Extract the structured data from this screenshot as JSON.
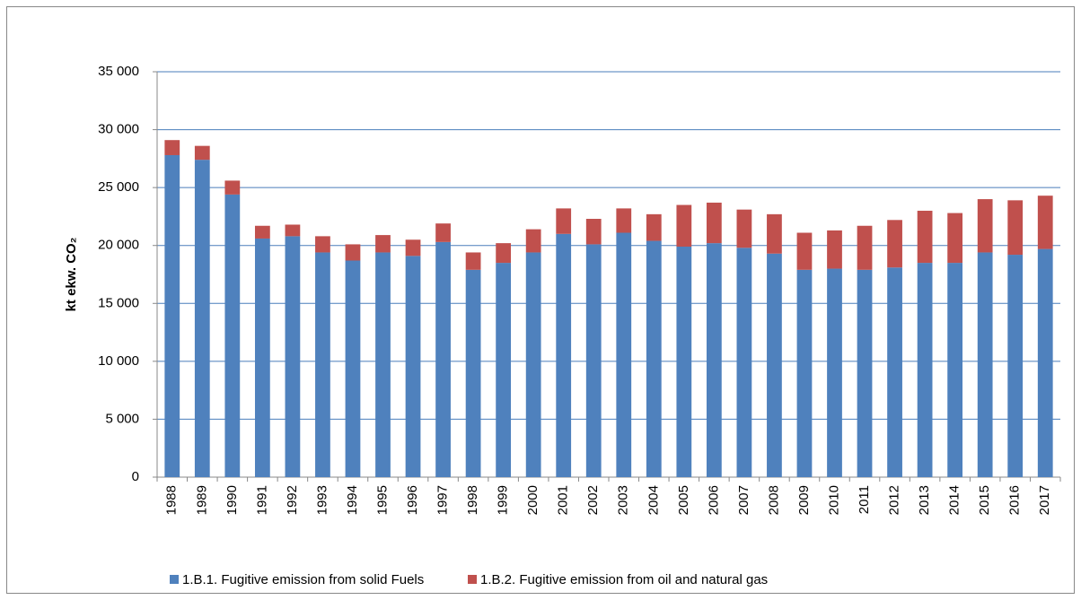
{
  "chart_data": {
    "type": "bar",
    "stacked": true,
    "ylabel": "kt ekw. CO₂",
    "categories": [
      "1988",
      "1989",
      "1990",
      "1991",
      "1992",
      "1993",
      "1994",
      "1995",
      "1996",
      "1997",
      "1998",
      "1999",
      "2000",
      "2001",
      "2002",
      "2003",
      "2004",
      "2005",
      "2006",
      "2007",
      "2008",
      "2009",
      "2010",
      "2011",
      "2012",
      "2013",
      "2014",
      "2015",
      "2016",
      "2017"
    ],
    "series": [
      {
        "name": "1.B.1. Fugitive emission from solid Fuels",
        "color": "#4f81bd",
        "values": [
          27800,
          27400,
          24400,
          20600,
          20800,
          19400,
          18700,
          19400,
          19100,
          20300,
          17900,
          18500,
          19400,
          21000,
          20100,
          21100,
          20400,
          19900,
          20200,
          19800,
          19300,
          17900,
          18000,
          17900,
          18100,
          18500,
          18500,
          19400,
          19200,
          19700
        ]
      },
      {
        "name": "1.B.2. Fugitive emission from oil and natural gas",
        "color": "#c0504d",
        "values": [
          1300,
          1200,
          1200,
          1100,
          1000,
          1400,
          1400,
          1500,
          1400,
          1600,
          1500,
          1700,
          2000,
          2200,
          2200,
          2100,
          2300,
          3600,
          3500,
          3300,
          3400,
          3200,
          3300,
          3800,
          4100,
          4500,
          4300,
          4600,
          4700,
          4600
        ]
      }
    ],
    "ylim": [
      0,
      35000
    ],
    "yticks": [
      0,
      {
        "value": 5000,
        "label": "5 000"
      },
      {
        "value": 10000,
        "label": "10 000"
      },
      {
        "value": 15000,
        "label": "15 000"
      },
      {
        "value": 20000,
        "label": "20 000"
      },
      {
        "value": 25000,
        "label": "25 000"
      },
      {
        "value": 30000,
        "label": "30 000"
      },
      {
        "value": 35000,
        "label": "35 000"
      }
    ],
    "grid": true,
    "legend": "bottom"
  }
}
